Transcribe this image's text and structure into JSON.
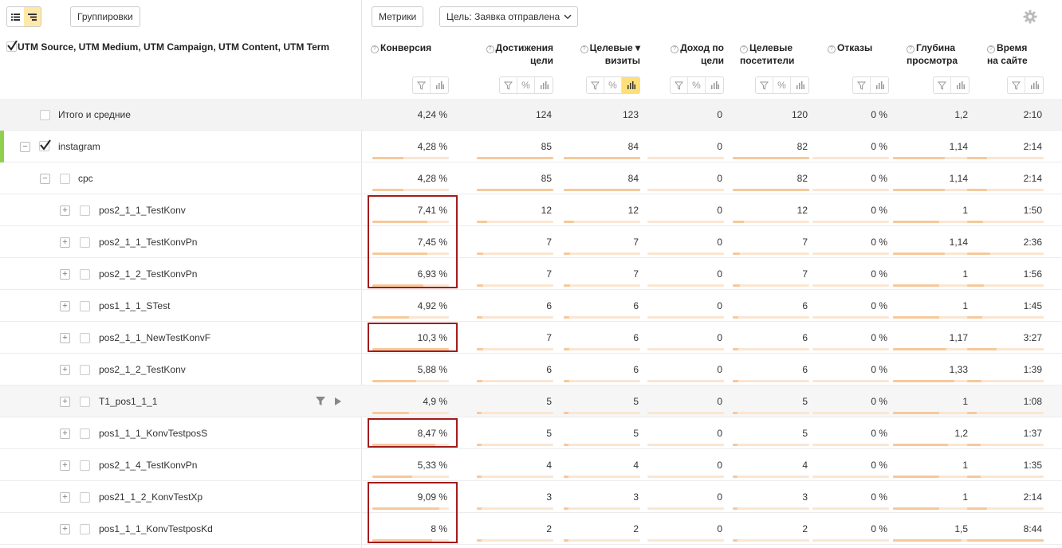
{
  "toolbar": {
    "groupings_label": "Группировки",
    "metrics_label": "Метрики",
    "goal_label": "Цель: Заявка отправлена"
  },
  "header": {
    "dimension_title": "UTM Source, UTM Medium, UTM Campaign, UTM Content, UTM Term",
    "metrics": [
      {
        "line1": "Конверсия",
        "line2": "",
        "sort": "",
        "tools": [
          "filter",
          "bars"
        ],
        "active_bars": false
      },
      {
        "line1": "Достижения",
        "line2": "цели",
        "sort": "",
        "tools": [
          "filter",
          "percent",
          "bars"
        ],
        "active_bars": false
      },
      {
        "line1": "Целевые",
        "line2": "визиты",
        "sort": "▾",
        "tools": [
          "filter",
          "percent",
          "bars"
        ],
        "active_bars": true
      },
      {
        "line1": "Доход по",
        "line2": "цели",
        "sort": "",
        "tools": [
          "filter",
          "percent",
          "bars"
        ],
        "active_bars": false
      },
      {
        "line1": "Целевые",
        "line2": "посетители",
        "sort": "",
        "tools": [
          "filter",
          "percent",
          "bars"
        ],
        "active_bars": false
      },
      {
        "line1": "Отказы",
        "line2": "",
        "sort": "",
        "tools": [
          "filter",
          "bars"
        ],
        "active_bars": false
      },
      {
        "line1": "Глубина",
        "line2": "просмотра",
        "sort": "",
        "tools": [
          "filter",
          "bars"
        ],
        "active_bars": false
      },
      {
        "line1": "Время",
        "line2": "на сайте",
        "sort": "",
        "tools": [
          "filter",
          "bars"
        ],
        "active_bars": false
      }
    ]
  },
  "colors": {
    "bar": "#f6c99b",
    "bar_bg": "#fbe6d2",
    "highlight": "#a31b1b",
    "accent": "#8fd14f"
  },
  "rows": [
    {
      "label": "Итого и средние",
      "level": 0,
      "type": "total",
      "values": [
        "4,24 %",
        "124",
        "123",
        "0",
        "120",
        "0 %",
        "1,2",
        "2:10"
      ]
    },
    {
      "label": "instagram",
      "level": 0,
      "type": "source",
      "values": [
        "4,28 %",
        "85",
        "84",
        "0",
        "82",
        "0 %",
        "1,14",
        "2:14"
      ],
      "bars": [
        0.41,
        1.0,
        1.0,
        0,
        1.0,
        0,
        0.68,
        0.26
      ]
    },
    {
      "label": "cpc",
      "level": 1,
      "type": "medium",
      "values": [
        "4,28 %",
        "85",
        "84",
        "0",
        "82",
        "0 %",
        "1,14",
        "2:14"
      ],
      "bars": [
        0.41,
        1.0,
        1.0,
        0,
        1.0,
        0,
        0.68,
        0.26
      ]
    },
    {
      "label": "pos2_1_1_TestKonv",
      "level": 2,
      "type": "campaign",
      "values": [
        "7,41 %",
        "12",
        "12",
        "0",
        "12",
        "0 %",
        "1",
        "1:50"
      ],
      "bars": [
        0.72,
        0.14,
        0.14,
        0,
        0.15,
        0,
        0.6,
        0.21
      ]
    },
    {
      "label": "pos2_1_1_TestKonvPn",
      "level": 2,
      "type": "campaign",
      "values": [
        "7,45 %",
        "7",
        "7",
        "0",
        "7",
        "0 %",
        "1,14",
        "2:36"
      ],
      "bars": [
        0.72,
        0.08,
        0.08,
        0,
        0.09,
        0,
        0.68,
        0.3
      ]
    },
    {
      "label": "pos2_1_2_TestKonvPn",
      "level": 2,
      "type": "campaign",
      "values": [
        "6,93 %",
        "7",
        "7",
        "0",
        "7",
        "0 %",
        "1",
        "1:56"
      ],
      "bars": [
        0.67,
        0.08,
        0.08,
        0,
        0.09,
        0,
        0.6,
        0.22
      ]
    },
    {
      "label": "pos1_1_1_STest",
      "level": 2,
      "type": "campaign",
      "values": [
        "4,92 %",
        "6",
        "6",
        "0",
        "6",
        "0 %",
        "1",
        "1:45"
      ],
      "bars": [
        0.48,
        0.07,
        0.07,
        0,
        0.07,
        0,
        0.6,
        0.2
      ]
    },
    {
      "label": "pos2_1_1_NewTestKonvF",
      "level": 2,
      "type": "campaign",
      "values": [
        "10,3 %",
        "7",
        "6",
        "0",
        "6",
        "0 %",
        "1,17",
        "3:27"
      ],
      "bars": [
        1.0,
        0.08,
        0.07,
        0,
        0.07,
        0,
        0.7,
        0.39
      ]
    },
    {
      "label": "pos2_1_2_TestKonv",
      "level": 2,
      "type": "campaign",
      "values": [
        "5,88 %",
        "6",
        "6",
        "0",
        "6",
        "0 %",
        "1,33",
        "1:39"
      ],
      "bars": [
        0.57,
        0.07,
        0.07,
        0,
        0.07,
        0,
        0.8,
        0.19
      ]
    },
    {
      "label": "T1_pos1_1_1",
      "level": 2,
      "type": "campaign",
      "values": [
        "4,9 %",
        "5",
        "5",
        "0",
        "5",
        "0 %",
        "1",
        "1:08"
      ],
      "bars": [
        0.48,
        0.06,
        0.06,
        0,
        0.06,
        0,
        0.6,
        0.13
      ]
    },
    {
      "label": "pos1_1_1_KonvTestposS",
      "level": 2,
      "type": "campaign",
      "values": [
        "8,47 %",
        "5",
        "5",
        "0",
        "5",
        "0 %",
        "1,2",
        "1:37"
      ],
      "bars": [
        0.82,
        0.06,
        0.06,
        0,
        0.06,
        0,
        0.72,
        0.18
      ]
    },
    {
      "label": "pos2_1_4_TestKonvPn",
      "level": 2,
      "type": "campaign",
      "values": [
        "5,33 %",
        "4",
        "4",
        "0",
        "4",
        "0 %",
        "1",
        "1:35"
      ],
      "bars": [
        0.52,
        0.05,
        0.05,
        0,
        0.05,
        0,
        0.6,
        0.18
      ]
    },
    {
      "label": "pos21_1_2_KonvTestXp",
      "level": 2,
      "type": "campaign",
      "values": [
        "9,09 %",
        "3",
        "3",
        "0",
        "3",
        "0 %",
        "1",
        "2:14"
      ],
      "bars": [
        0.88,
        0.04,
        0.04,
        0,
        0.04,
        0,
        0.6,
        0.26
      ]
    },
    {
      "label": "pos1_1_1_KonvTestposKd",
      "level": 2,
      "type": "campaign",
      "values": [
        "8 %",
        "2",
        "2",
        "0",
        "2",
        "0 %",
        "1,5",
        "8:44"
      ],
      "bars": [
        0.78,
        0.02,
        0.02,
        0,
        0.02,
        0,
        0.9,
        1.0
      ]
    }
  ],
  "highlighted_rows": [
    [
      "pos2_1_1_TestKonv",
      "pos2_1_1_TestKonvPn",
      "pos2_1_2_TestKonvPn"
    ],
    [
      "pos2_1_1_NewTestKonvF"
    ],
    [
      "pos1_1_1_KonvTestposS"
    ],
    [
      "pos21_1_2_KonvTestXp",
      "pos1_1_1_KonvTestposKd"
    ]
  ]
}
